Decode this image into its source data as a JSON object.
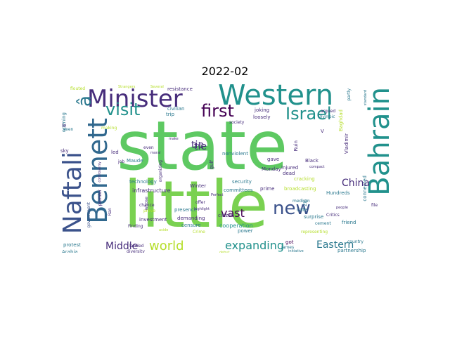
{
  "title": "2022-02",
  "palette": {
    "green": "#5ec962",
    "lightgreen": "#7ad151",
    "teal": "#21918c",
    "teal2": "#2a788e",
    "blue": "#3b528b",
    "indigo": "#31688e",
    "purple": "#472d7b",
    "darkpurple": "#440154",
    "yellow": "#fde725",
    "lime": "#b5de2b",
    "mint": "#35b779"
  },
  "words": [
    {
      "text": "state"
    },
    {
      "text": "little"
    },
    {
      "text": "Western"
    },
    {
      "text": "Minister"
    },
    {
      "text": "Naftali"
    },
    {
      "text": "Bennett"
    },
    {
      "text": "â"
    },
    {
      "text": "Bahrain"
    },
    {
      "text": "visit"
    },
    {
      "text": "first"
    },
    {
      "text": "Israel"
    },
    {
      "text": "new"
    },
    {
      "text": "world"
    },
    {
      "text": "expanding"
    },
    {
      "text": "Eastern"
    },
    {
      "text": "Middle"
    },
    {
      "text": "vast"
    },
    {
      "text": "China"
    },
    {
      "text": "tie"
    },
    {
      "text": "infrastructure"
    },
    {
      "text": "technology"
    },
    {
      "text": "Winter"
    },
    {
      "text": "security"
    },
    {
      "text": "committees"
    },
    {
      "text": "broadcasting"
    },
    {
      "text": "cooperation"
    },
    {
      "text": "presence"
    },
    {
      "text": "censure"
    },
    {
      "text": "demanding"
    },
    {
      "text": "investment"
    },
    {
      "text": "chance"
    },
    {
      "text": "prove"
    },
    {
      "text": "Finding"
    },
    {
      "text": "landed"
    },
    {
      "text": "diversity"
    },
    {
      "text": "protest"
    },
    {
      "text": "Arabia"
    },
    {
      "text": "government"
    },
    {
      "text": "premier"
    },
    {
      "text": "Ran"
    },
    {
      "text": "partnership"
    },
    {
      "text": "country"
    },
    {
      "text": "initiative"
    },
    {
      "text": "James"
    },
    {
      "text": "got"
    },
    {
      "text": "power"
    },
    {
      "text": "citizen"
    },
    {
      "text": "surprise"
    },
    {
      "text": "representing"
    },
    {
      "text": "friend"
    },
    {
      "text": "Critics"
    },
    {
      "text": "Hundreds"
    },
    {
      "text": "medium"
    },
    {
      "text": "cafe"
    },
    {
      "text": "Zip"
    },
    {
      "text": "cracking"
    },
    {
      "text": "Black"
    },
    {
      "text": "injured"
    },
    {
      "text": "dead"
    },
    {
      "text": "prime"
    },
    {
      "text": "Monday"
    },
    {
      "text": "gave"
    },
    {
      "text": "nonviolent"
    },
    {
      "text": "Perfect"
    },
    {
      "text": "offer"
    },
    {
      "text": "highlight"
    },
    {
      "text": "Crime"
    },
    {
      "text": "Maude"
    },
    {
      "text": "organizing"
    },
    {
      "text": "led"
    },
    {
      "text": "even"
    },
    {
      "text": "job"
    },
    {
      "text": "trip"
    },
    {
      "text": "civilian"
    },
    {
      "text": "resistance"
    },
    {
      "text": "joking"
    },
    {
      "text": "loosely"
    },
    {
      "text": "society"
    },
    {
      "text": "argued"
    },
    {
      "text": "Vladimir"
    },
    {
      "text": "Baghdad"
    },
    {
      "text": "Olympic"
    },
    {
      "text": "partly"
    },
    {
      "text": "standard"
    },
    {
      "text": "connected"
    },
    {
      "text": "file"
    },
    {
      "text": "opening"
    },
    {
      "text": "sky"
    },
    {
      "text": "making"
    },
    {
      "text": "le"
    },
    {
      "text": "seen"
    },
    {
      "text": "flouted"
    },
    {
      "text": "Strangers"
    },
    {
      "text": "Several"
    },
    {
      "text": "controversy"
    },
    {
      "text": "cement"
    },
    {
      "text": "compact"
    },
    {
      "text": "Ruin"
    },
    {
      "text": "debut"
    },
    {
      "text": "moral"
    },
    {
      "text": "gulf"
    },
    {
      "text": "V"
    },
    {
      "text": "people"
    },
    {
      "text": "whose"
    },
    {
      "text": "aside"
    },
    {
      "text": "make"
    },
    {
      "text": "tie"
    }
  ]
}
